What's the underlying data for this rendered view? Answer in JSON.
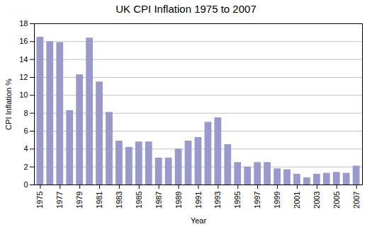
{
  "chart_data": {
    "type": "bar",
    "title": "UK CPI Inflation 1975 to 2007",
    "xlabel": "Year",
    "ylabel": "CPI Inflation %",
    "x": [
      1975,
      1976,
      1977,
      1978,
      1979,
      1980,
      1981,
      1982,
      1983,
      1984,
      1985,
      1986,
      1987,
      1988,
      1989,
      1990,
      1991,
      1992,
      1993,
      1994,
      1995,
      1996,
      1997,
      1998,
      1999,
      2000,
      2001,
      2002,
      2003,
      2004,
      2005,
      2006,
      2007
    ],
    "values": [
      16.5,
      16.0,
      15.9,
      8.3,
      12.3,
      16.4,
      11.5,
      8.1,
      4.9,
      4.2,
      4.8,
      4.8,
      3.0,
      3.0,
      4.0,
      4.9,
      5.3,
      7.0,
      7.5,
      4.5,
      2.5,
      2.0,
      2.5,
      2.5,
      1.8,
      1.7,
      1.2,
      0.8,
      1.2,
      1.3,
      1.4,
      1.3,
      2.1
    ],
    "color": "#9999cc",
    "xlim": [
      1974.4,
      2007.6
    ],
    "xticks": [
      1975,
      1977,
      1979,
      1981,
      1983,
      1985,
      1987,
      1989,
      1991,
      1993,
      1995,
      1997,
      1999,
      2001,
      2003,
      2005,
      2007
    ],
    "ylim": [
      0,
      18
    ],
    "yticks": [
      0,
      2,
      4,
      6,
      8,
      10,
      12,
      14,
      16,
      18
    ],
    "grid": true
  }
}
